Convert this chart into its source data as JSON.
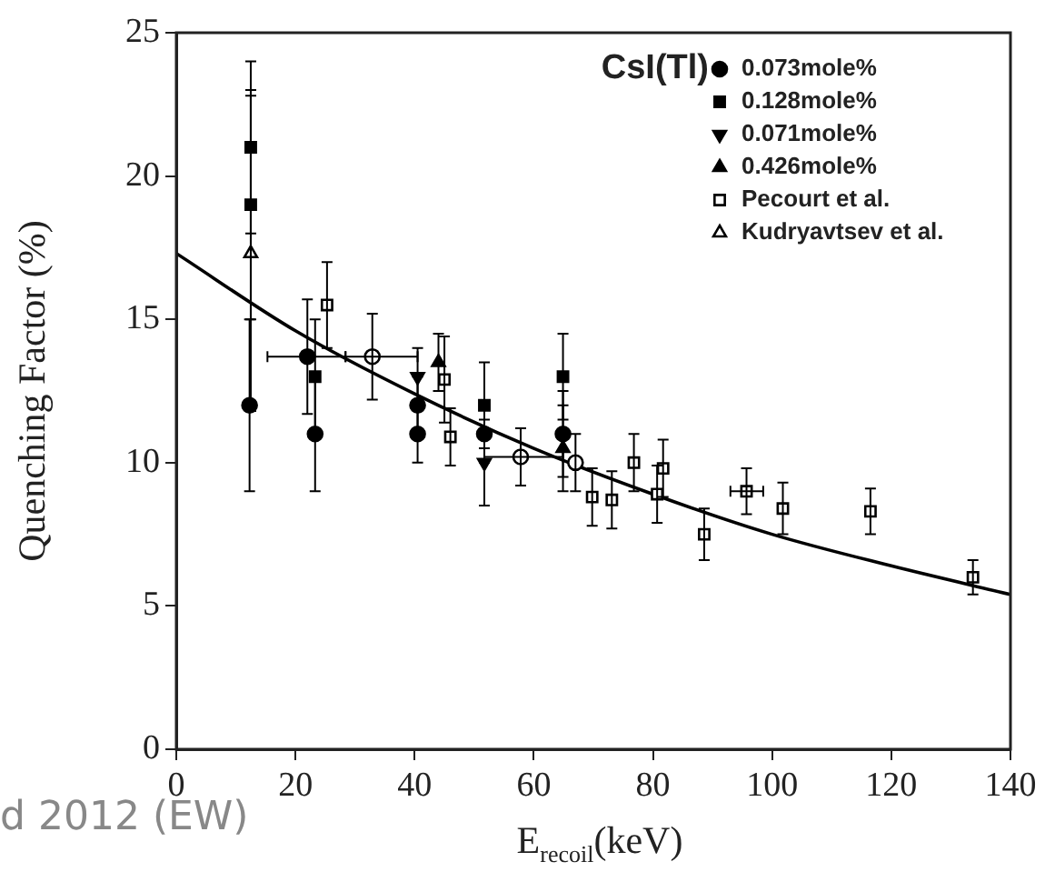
{
  "chart_data": {
    "type": "scatter",
    "xlabel": "E$_{recoil}$(keV)",
    "ylabel": "Quenching Factor (%)",
    "legend_title": "CsI(Tl)",
    "xlim": [
      0,
      140
    ],
    "xticks": [
      0,
      20,
      40,
      60,
      80,
      100,
      120,
      140
    ],
    "ylim": [
      0,
      25
    ],
    "yticks": [
      0,
      5,
      10,
      15,
      20,
      25
    ],
    "grid": false,
    "legend": "top right",
    "annotations": [
      "d 2012 (EW)"
    ],
    "series": [
      {
        "name": "0.073mole%",
        "color": "#000000",
        "marker": "circle",
        "x": [
          12.3,
          22,
          23.3,
          40.5,
          40.5,
          51.7,
          64.9
        ],
        "values": [
          12,
          13.7,
          11,
          12,
          11,
          11,
          11
        ],
        "errors": [
          3,
          2,
          2,
          1,
          1,
          1,
          1.5
        ],
        "xerrors": [
          null,
          [
            15.3,
            28.4
          ],
          null,
          null,
          null,
          null,
          null
        ]
      },
      {
        "name": "0.128mole%",
        "color": "#000000",
        "marker": "square",
        "x": [
          12.5,
          12.5,
          23.3,
          51.7,
          64.9
        ],
        "values": [
          21,
          19,
          13,
          12,
          13
        ],
        "errors": [
          3,
          4,
          2,
          1.5,
          1.5
        ]
      },
      {
        "name": "0.071mole%",
        "color": "#000000",
        "marker": "triangle-down",
        "x": [
          40.5,
          51.7
        ],
        "values": [
          13,
          10
        ],
        "errors": [
          1,
          1.5
        ]
      },
      {
        "name": "0.426mole%",
        "color": "#000000",
        "marker": "triangle",
        "x": [
          44,
          64.9
        ],
        "values": [
          13.5,
          10.5
        ],
        "errors": [
          1,
          1.5
        ]
      },
      {
        "name": "Pecourt et al.",
        "color": "#000000",
        "marker": "square-open",
        "x": [
          25.3,
          45,
          46,
          69.8,
          73.1,
          76.8,
          81.7,
          80.7,
          88.6,
          95.7,
          101.8,
          116.5,
          133.7
        ],
        "values": [
          15.5,
          12.9,
          10.9,
          8.8,
          8.7,
          10,
          9.8,
          8.9,
          7.5,
          9,
          8.4,
          8.3,
          6
        ],
        "errors": [
          1.5,
          1.5,
          1,
          1,
          1,
          1,
          1,
          1,
          0.9,
          0.8,
          0.9,
          0.8,
          0.6
        ],
        "xerrors": [
          null,
          null,
          null,
          null,
          null,
          null,
          null,
          null,
          null,
          [
            93,
            98.5
          ],
          null,
          null,
          null
        ]
      },
      {
        "name": "Kudryavtsev et al.",
        "color": "#000000",
        "marker": "triangle-open",
        "x": [
          12.5
        ],
        "values": [
          17.3
        ],
        "errors": [
          5.5
        ]
      },
      {
        "color": "#000000",
        "marker": "circle-open",
        "x": [
          32.9,
          57.8,
          67
        ],
        "values": [
          13.7,
          10.2,
          10
        ],
        "errors": [
          1.5,
          1,
          1
        ],
        "xerrors": [
          [
            28.4,
            40.5
          ],
          [
            51.7,
            64.9
          ],
          null
        ]
      },
      {
        "type": "line",
        "color": "#000000",
        "marker": "none",
        "x": [
          0,
          20,
          40,
          60,
          80,
          100,
          120,
          140
        ],
        "values": [
          17.3,
          14.6,
          12.4,
          10.5,
          8.9,
          7.5,
          6.4,
          5.4
        ]
      }
    ]
  }
}
